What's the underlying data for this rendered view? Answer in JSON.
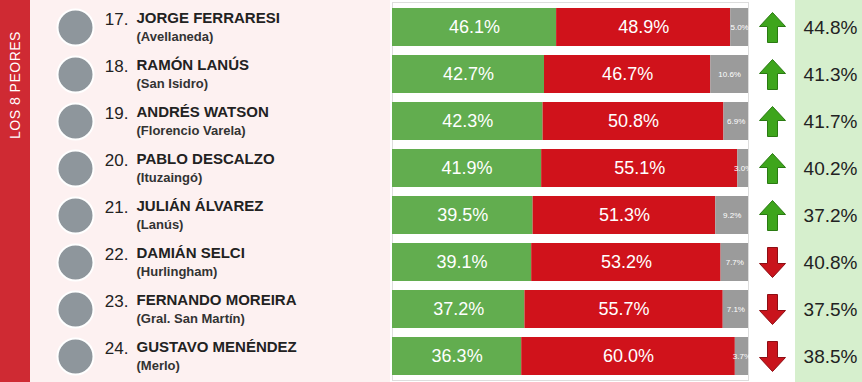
{
  "chart_data": {
    "type": "bar",
    "title": "LOS 8 PEORES",
    "orientation": "horizontal",
    "stacked": true,
    "data_labels": true,
    "tick_labels": false,
    "grid": false,
    "categories": [
      "JORGE FERRARESI",
      "RAMÓN LANÚS",
      "ANDRÉS WATSON",
      "PABLO DESCALZO",
      "JULIÁN ÁLVAREZ",
      "DAMIÁN SELCI",
      "FERNANDO MOREIRA",
      "GUSTAVO MENÉNDEZ"
    ],
    "ranks": [
      "17.",
      "18.",
      "19.",
      "20.",
      "21.",
      "22.",
      "23.",
      "24."
    ],
    "districts": [
      "(Avellaneda)",
      "(San Isidro)",
      "(Florencio Varela)",
      "(Ituzaingó)",
      "(Lanús)",
      "(Hurlingham)",
      "(Gral. San Martín)",
      "(Merlo)"
    ],
    "xlim": [
      0,
      100
    ],
    "xticks": [],
    "series": [
      {
        "color": "#62ad4f",
        "values": [
          46.1,
          42.7,
          42.3,
          41.9,
          39.5,
          39.1,
          37.2,
          36.3
        ],
        "value_labels": [
          "46.1%",
          "42.7%",
          "42.3%",
          "41.9%",
          "39.5%",
          "39.1%",
          "37.2%",
          "36.3%"
        ]
      },
      {
        "color": "#d0121b",
        "values": [
          48.9,
          46.7,
          50.8,
          55.1,
          51.3,
          53.2,
          55.7,
          60.0
        ],
        "value_labels": [
          "48.9%",
          "46.7%",
          "50.8%",
          "55.1%",
          "51.3%",
          "53.2%",
          "55.7%",
          "60.0%"
        ]
      },
      {
        "color": "#9b9b9b",
        "values": [
          5.0,
          10.6,
          6.9,
          3.0,
          9.2,
          7.7,
          7.1,
          3.7
        ],
        "value_labels": [
          "5.0%",
          "10.6%",
          "6.9%",
          "3.0%",
          "9.2%",
          "7.7%",
          "7.1%",
          "3.7%"
        ]
      }
    ],
    "previous_values": [
      44.8,
      41.3,
      41.7,
      40.2,
      37.2,
      40.8,
      37.5,
      38.5
    ],
    "previous_labels": [
      "44.8%",
      "41.3%",
      "41.7%",
      "40.2%",
      "37.2%",
      "40.8%",
      "37.5%",
      "38.5%"
    ]
  }
}
